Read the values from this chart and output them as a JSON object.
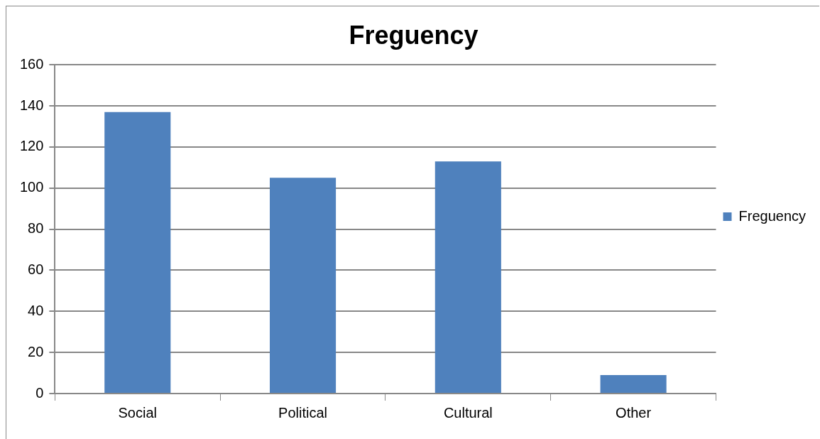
{
  "chart_data": {
    "type": "bar",
    "title": "Freguency",
    "categories": [
      "Social",
      "Political",
      "Cultural",
      "Other"
    ],
    "series": [
      {
        "name": "Freguency",
        "color": "#4f81bd",
        "values": [
          137,
          105,
          113,
          9
        ]
      }
    ],
    "ylim": [
      0,
      160
    ],
    "yticks": [
      0,
      20,
      40,
      60,
      80,
      100,
      120,
      140,
      160
    ],
    "grid": "y",
    "legend": "right"
  }
}
